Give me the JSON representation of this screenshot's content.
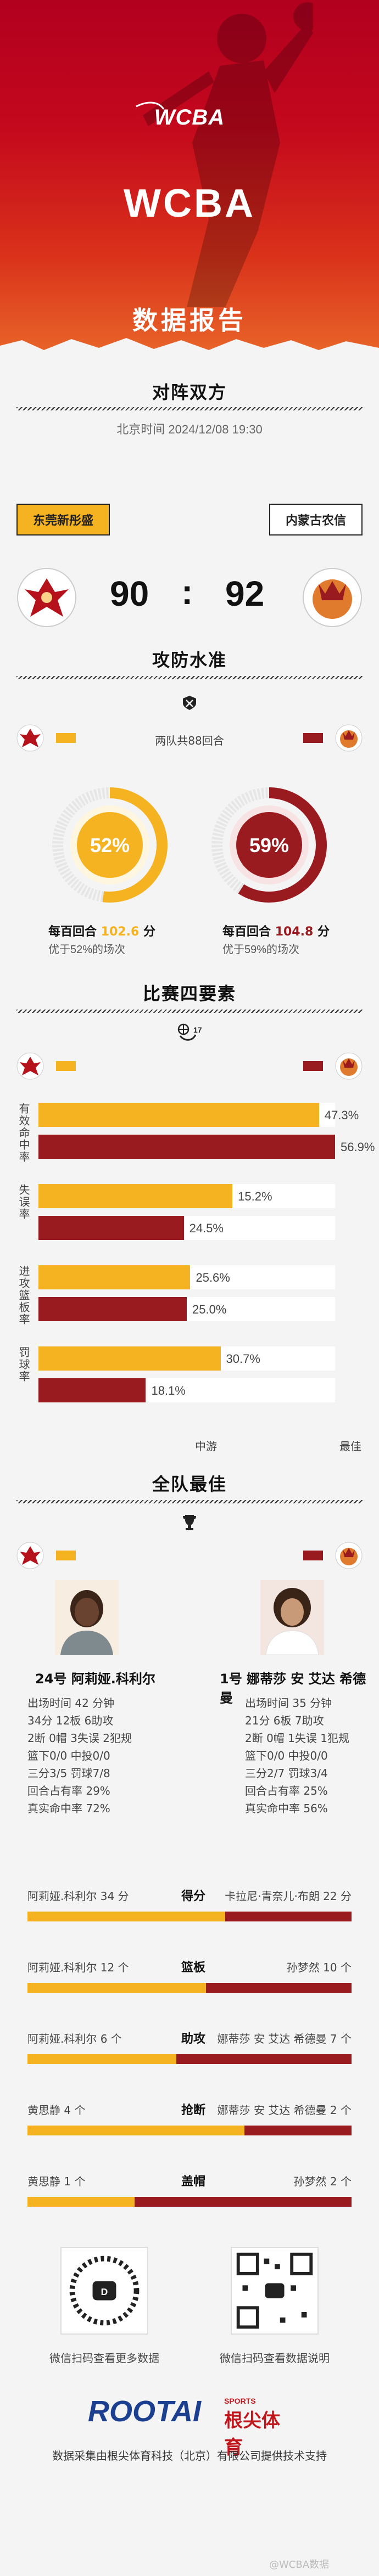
{
  "hero": {
    "logo_text": "WCBA",
    "title": "WCBA",
    "subtitle": "数据报告"
  },
  "matchup": {
    "section_title": "对阵双方",
    "datetime": "北京时间 2024/12/08 19:30",
    "team_left": "东莞新彤盛",
    "team_right": "内蒙古农信",
    "score_left": "90",
    "score_sep": ":",
    "score_right": "92"
  },
  "offdef": {
    "section_title": "攻防水准",
    "rounds": "两队共88回合",
    "left_pct": "52%",
    "left_pct_value": 52,
    "right_pct": "59%",
    "right_pct_value": 59,
    "left_ppp_label": "每百回合",
    "left_ppp_value": "102.6",
    "left_ppp_unit": "分",
    "left_better": "优于52%的场次",
    "right_ppp_label": "每百回合",
    "right_ppp_value": "104.8",
    "right_ppp_unit": "分",
    "right_better": "优于59%的场次"
  },
  "four_factors": {
    "section_title": "比赛四要素",
    "rows": [
      {
        "label": "有效命中率",
        "left_pct": "47.3%",
        "left_value": 47.3,
        "right_pct": "56.9%",
        "right_value": 56.9
      },
      {
        "label": "失误率",
        "left_pct": "15.2%",
        "left_value": 15.2,
        "right_pct": "24.5%",
        "right_value": 24.5
      },
      {
        "label": "进攻篮板率",
        "left_pct": "25.6%",
        "left_value": 25.6,
        "right_pct": "25.0%",
        "right_value": 25.0
      },
      {
        "label": "罚球率",
        "left_pct": "30.7%",
        "left_value": 30.7,
        "right_pct": "18.1%",
        "right_value": 18.1
      }
    ],
    "axis_mid": "中游",
    "axis_best": "最佳"
  },
  "best": {
    "section_title": "全队最佳",
    "left_name": "24号 阿莉娅.科利尔",
    "right_name": "1号 娜蒂莎 安 艾达 希德曼",
    "left_lines": [
      "出场时间 42 分钟",
      "34分   12板   6助攻",
      "2断   0帽   3失误   2犯规",
      "篮下0/0   中投0/0",
      "三分3/5   罚球7/8",
      "回合占有率 29%",
      "真实命中率 72%"
    ],
    "right_lines": [
      "出场时间 35 分钟",
      "21分   6板   7助攻",
      "2断   0帽   1失误   1犯规",
      "篮下0/0   中投0/0",
      "三分2/7   罚球3/4",
      "回合占有率 25%",
      "真实命中率 56%"
    ]
  },
  "compare": [
    {
      "left": "阿莉娅.科利尔 34 分",
      "cat": "得分",
      "right": "卡拉尼·青奈儿·布朗 22 分",
      "left_share": 0.61
    },
    {
      "left": "阿莉娅.科利尔 12 个",
      "cat": "篮板",
      "right": "孙梦然 10 个",
      "left_share": 0.55
    },
    {
      "left": "阿莉娅.科利尔 6 个",
      "cat": "助攻",
      "right": "娜蒂莎 安 艾达 希德曼 7 个",
      "left_share": 0.46
    },
    {
      "left": "黄思静 4 个",
      "cat": "抢断",
      "right": "娜蒂莎 安 艾达 希德曼 2 个",
      "left_share": 0.67
    },
    {
      "left": "黄思静 1 个",
      "cat": "盖帽",
      "right": "孙梦然 2 个",
      "left_share": 0.33
    }
  ],
  "footer": {
    "qr_left_caption": "微信扫码查看更多数据",
    "qr_right_caption": "微信扫码查看数据说明",
    "brand": "ROOTAI",
    "brand_sports": "SPORTS",
    "brand_cn": "根尖体育",
    "credit": "数据采集由根尖体育科技（北京）有限公司提供技术支持",
    "watermark": "@WCBA数据"
  },
  "colors": {
    "left_team": "#f5b321",
    "right_team": "#9a1b1f",
    "hero_top": "#b2001f",
    "hero_bottom": "#e9692a"
  }
}
